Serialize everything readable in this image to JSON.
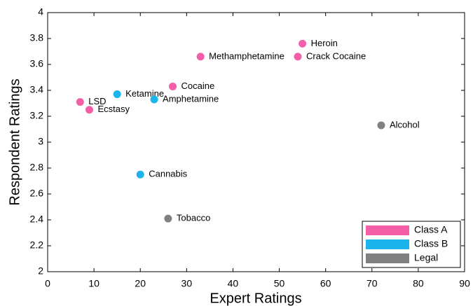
{
  "chart_data": {
    "type": "scatter",
    "x_label": "Expert Ratings",
    "y_label": "Respondent Ratings",
    "xlim": [
      0,
      90
    ],
    "xticks": [
      0,
      10,
      20,
      30,
      40,
      50,
      60,
      70,
      80,
      90
    ],
    "ylim": [
      2,
      4
    ],
    "yticks": [
      2,
      2.2,
      2.4,
      2.6,
      2.8,
      3,
      3.2,
      3.4,
      3.6,
      3.8,
      4
    ],
    "legend": "lower right",
    "series": [
      {
        "name": "Class A",
        "color": "#f45fa8",
        "x": [
          55,
          54,
          33,
          27,
          7,
          9
        ],
        "values": [
          3.76,
          3.66,
          3.66,
          3.43,
          3.31,
          3.25
        ],
        "labels": [
          "Heroin",
          "Crack Cocaine",
          "Methamphetamine",
          "Cocaine",
          "LSD",
          "Ecstasy"
        ]
      },
      {
        "name": "Class B",
        "color": "#1cb4ec",
        "x": [
          15,
          23,
          20
        ],
        "values": [
          3.37,
          3.33,
          2.75
        ],
        "labels": [
          "Ketamine",
          "Amphetamine",
          "Cannabis"
        ]
      },
      {
        "name": "Legal",
        "color": "#808080",
        "x": [
          72,
          26
        ],
        "values": [
          3.13,
          2.41
        ],
        "labels": [
          "Alcohol",
          "Tobacco"
        ]
      }
    ]
  }
}
